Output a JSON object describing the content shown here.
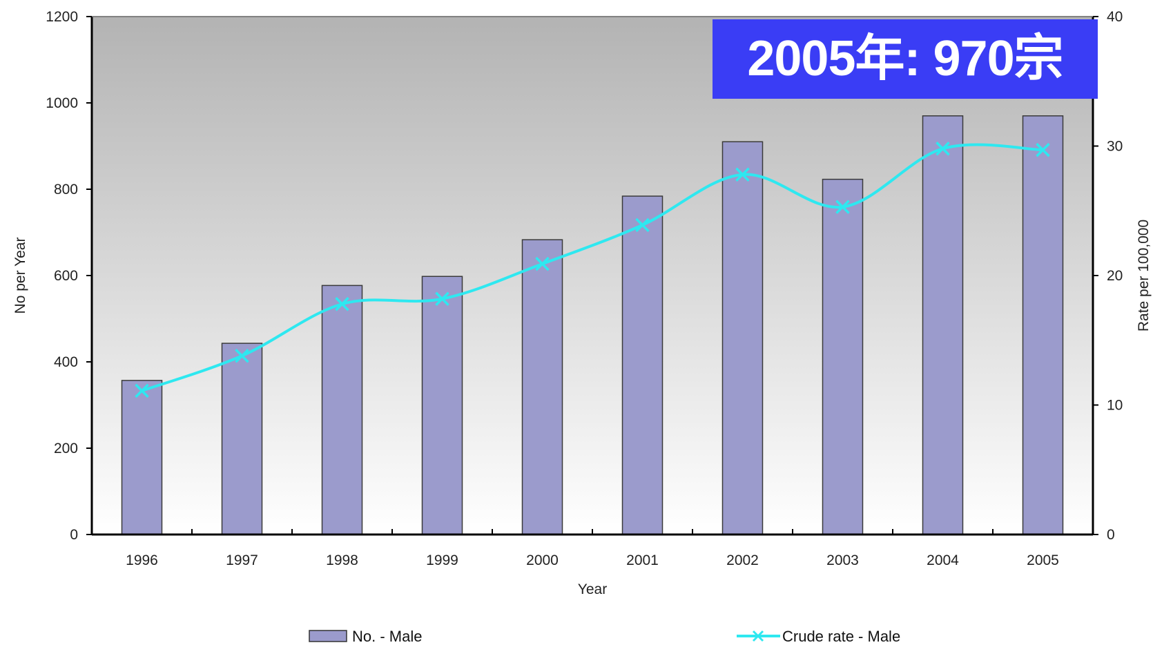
{
  "annotation": {
    "text": "2005年: 970宗"
  },
  "colors": {
    "bar": "#9b9bcc",
    "line": "#2ee8f0",
    "callout": "#3a3df5"
  },
  "chart_data": {
    "type": "bar",
    "categories": [
      "1996",
      "1997",
      "1998",
      "1999",
      "2000",
      "2001",
      "2002",
      "2003",
      "2004",
      "2005"
    ],
    "series": [
      {
        "name": "No. - Male",
        "type": "bar",
        "axis": "left",
        "values": [
          357,
          443,
          577,
          598,
          683,
          784,
          910,
          823,
          970,
          970
        ]
      },
      {
        "name": "Crude rate - Male",
        "type": "line",
        "axis": "right",
        "marker": "x",
        "smooth": true,
        "values": [
          11.1,
          13.8,
          17.8,
          18.2,
          20.9,
          23.9,
          27.8,
          25.3,
          29.8,
          29.7
        ]
      }
    ],
    "xlabel": "Year",
    "ylabel": "No per Year",
    "y2label": "Rate per 100,000",
    "ylim": [
      0,
      1200
    ],
    "y2lim": [
      0,
      40
    ],
    "yticks": [
      "0",
      "200",
      "400",
      "600",
      "800",
      "1000",
      "1200"
    ],
    "y2ticks": [
      "0",
      "10",
      "20",
      "30",
      "40"
    ],
    "legend": {
      "position": "bottom",
      "entries": [
        "No. - Male",
        "Crude rate - Male"
      ]
    },
    "background": "gradient-gray"
  }
}
